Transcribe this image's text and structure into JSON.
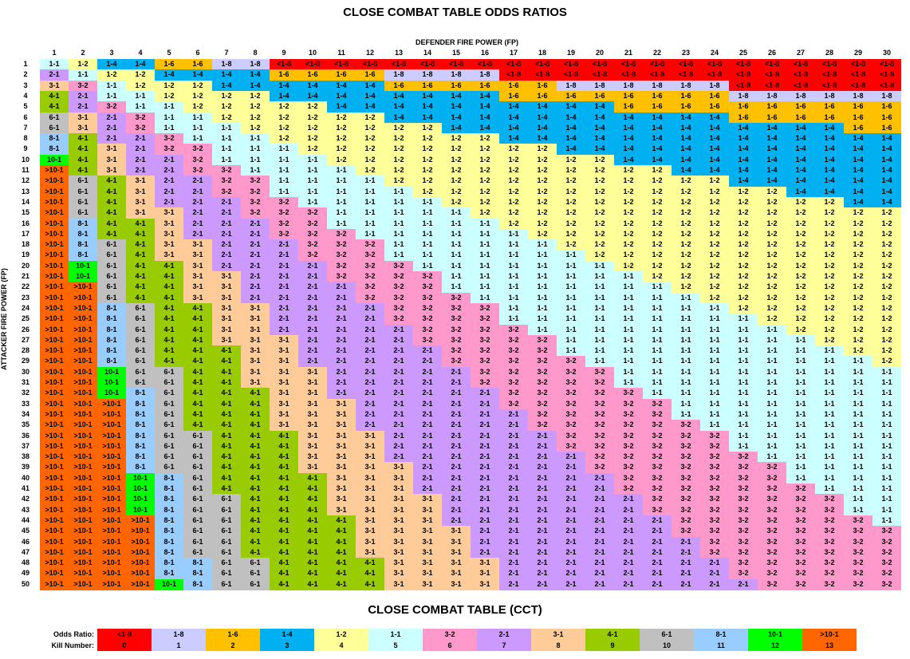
{
  "title": "CLOSE COMBAT TABLE ODDS RATIOS",
  "x_axis_label": "DEFENDER FIRE POWER (FP)",
  "y_axis_label": "ATTACKER FIRE POWER (FP)",
  "subtitle": "CLOSE COMBAT TABLE (CCT)",
  "legend_row_labels": {
    "odds": "Odds Ratio:",
    "kill": "Kill Number:"
  },
  "legend": [
    {
      "odds": "<1-8",
      "kill": "0",
      "color": "#ff0000"
    },
    {
      "odds": "1-8",
      "kill": "1",
      "color": "#ccccff"
    },
    {
      "odds": "1-6",
      "kill": "2",
      "color": "#ffc000"
    },
    {
      "odds": "1-4",
      "kill": "3",
      "color": "#00b0f0"
    },
    {
      "odds": "1-2",
      "kill": "4",
      "color": "#ffff99"
    },
    {
      "odds": "1-1",
      "kill": "5",
      "color": "#ccffff"
    },
    {
      "odds": "3-2",
      "kill": "6",
      "color": "#ff99cc"
    },
    {
      "odds": "2-1",
      "kill": "7",
      "color": "#cc99ff"
    },
    {
      "odds": "3-1",
      "kill": "8",
      "color": "#ffcc99"
    },
    {
      "odds": "4-1",
      "kill": "9",
      "color": "#99cc00"
    },
    {
      "odds": "6-1",
      "kill": "10",
      "color": "#c0c0c0"
    },
    {
      "odds": "8-1",
      "kill": "11",
      "color": "#99ccff"
    },
    {
      "odds": "10-1",
      "kill": "12",
      "color": "#00ff00"
    },
    {
      "odds": ">10-1",
      "kill": "13",
      "color": "#ff6600"
    }
  ],
  "chart_data": {
    "type": "table",
    "columns": [
      1,
      2,
      3,
      4,
      5,
      6,
      7,
      8,
      9,
      10,
      11,
      12,
      13,
      14,
      15,
      16,
      17,
      18,
      19,
      20,
      21,
      22,
      23,
      24,
      25,
      26,
      27,
      28,
      29,
      30
    ],
    "rows": [
      1,
      2,
      3,
      4,
      5,
      6,
      7,
      8,
      9,
      10,
      11,
      12,
      13,
      14,
      15,
      16,
      17,
      18,
      19,
      20,
      21,
      22,
      23,
      24,
      25,
      26,
      27,
      28,
      29,
      30,
      31,
      32,
      33,
      34,
      35,
      36,
      37,
      38,
      39,
      40,
      41,
      42,
      43,
      44,
      45,
      46,
      47,
      48,
      49,
      50
    ],
    "rule": "cell = odds category of attacker FP / defender FP (values per legend)"
  }
}
